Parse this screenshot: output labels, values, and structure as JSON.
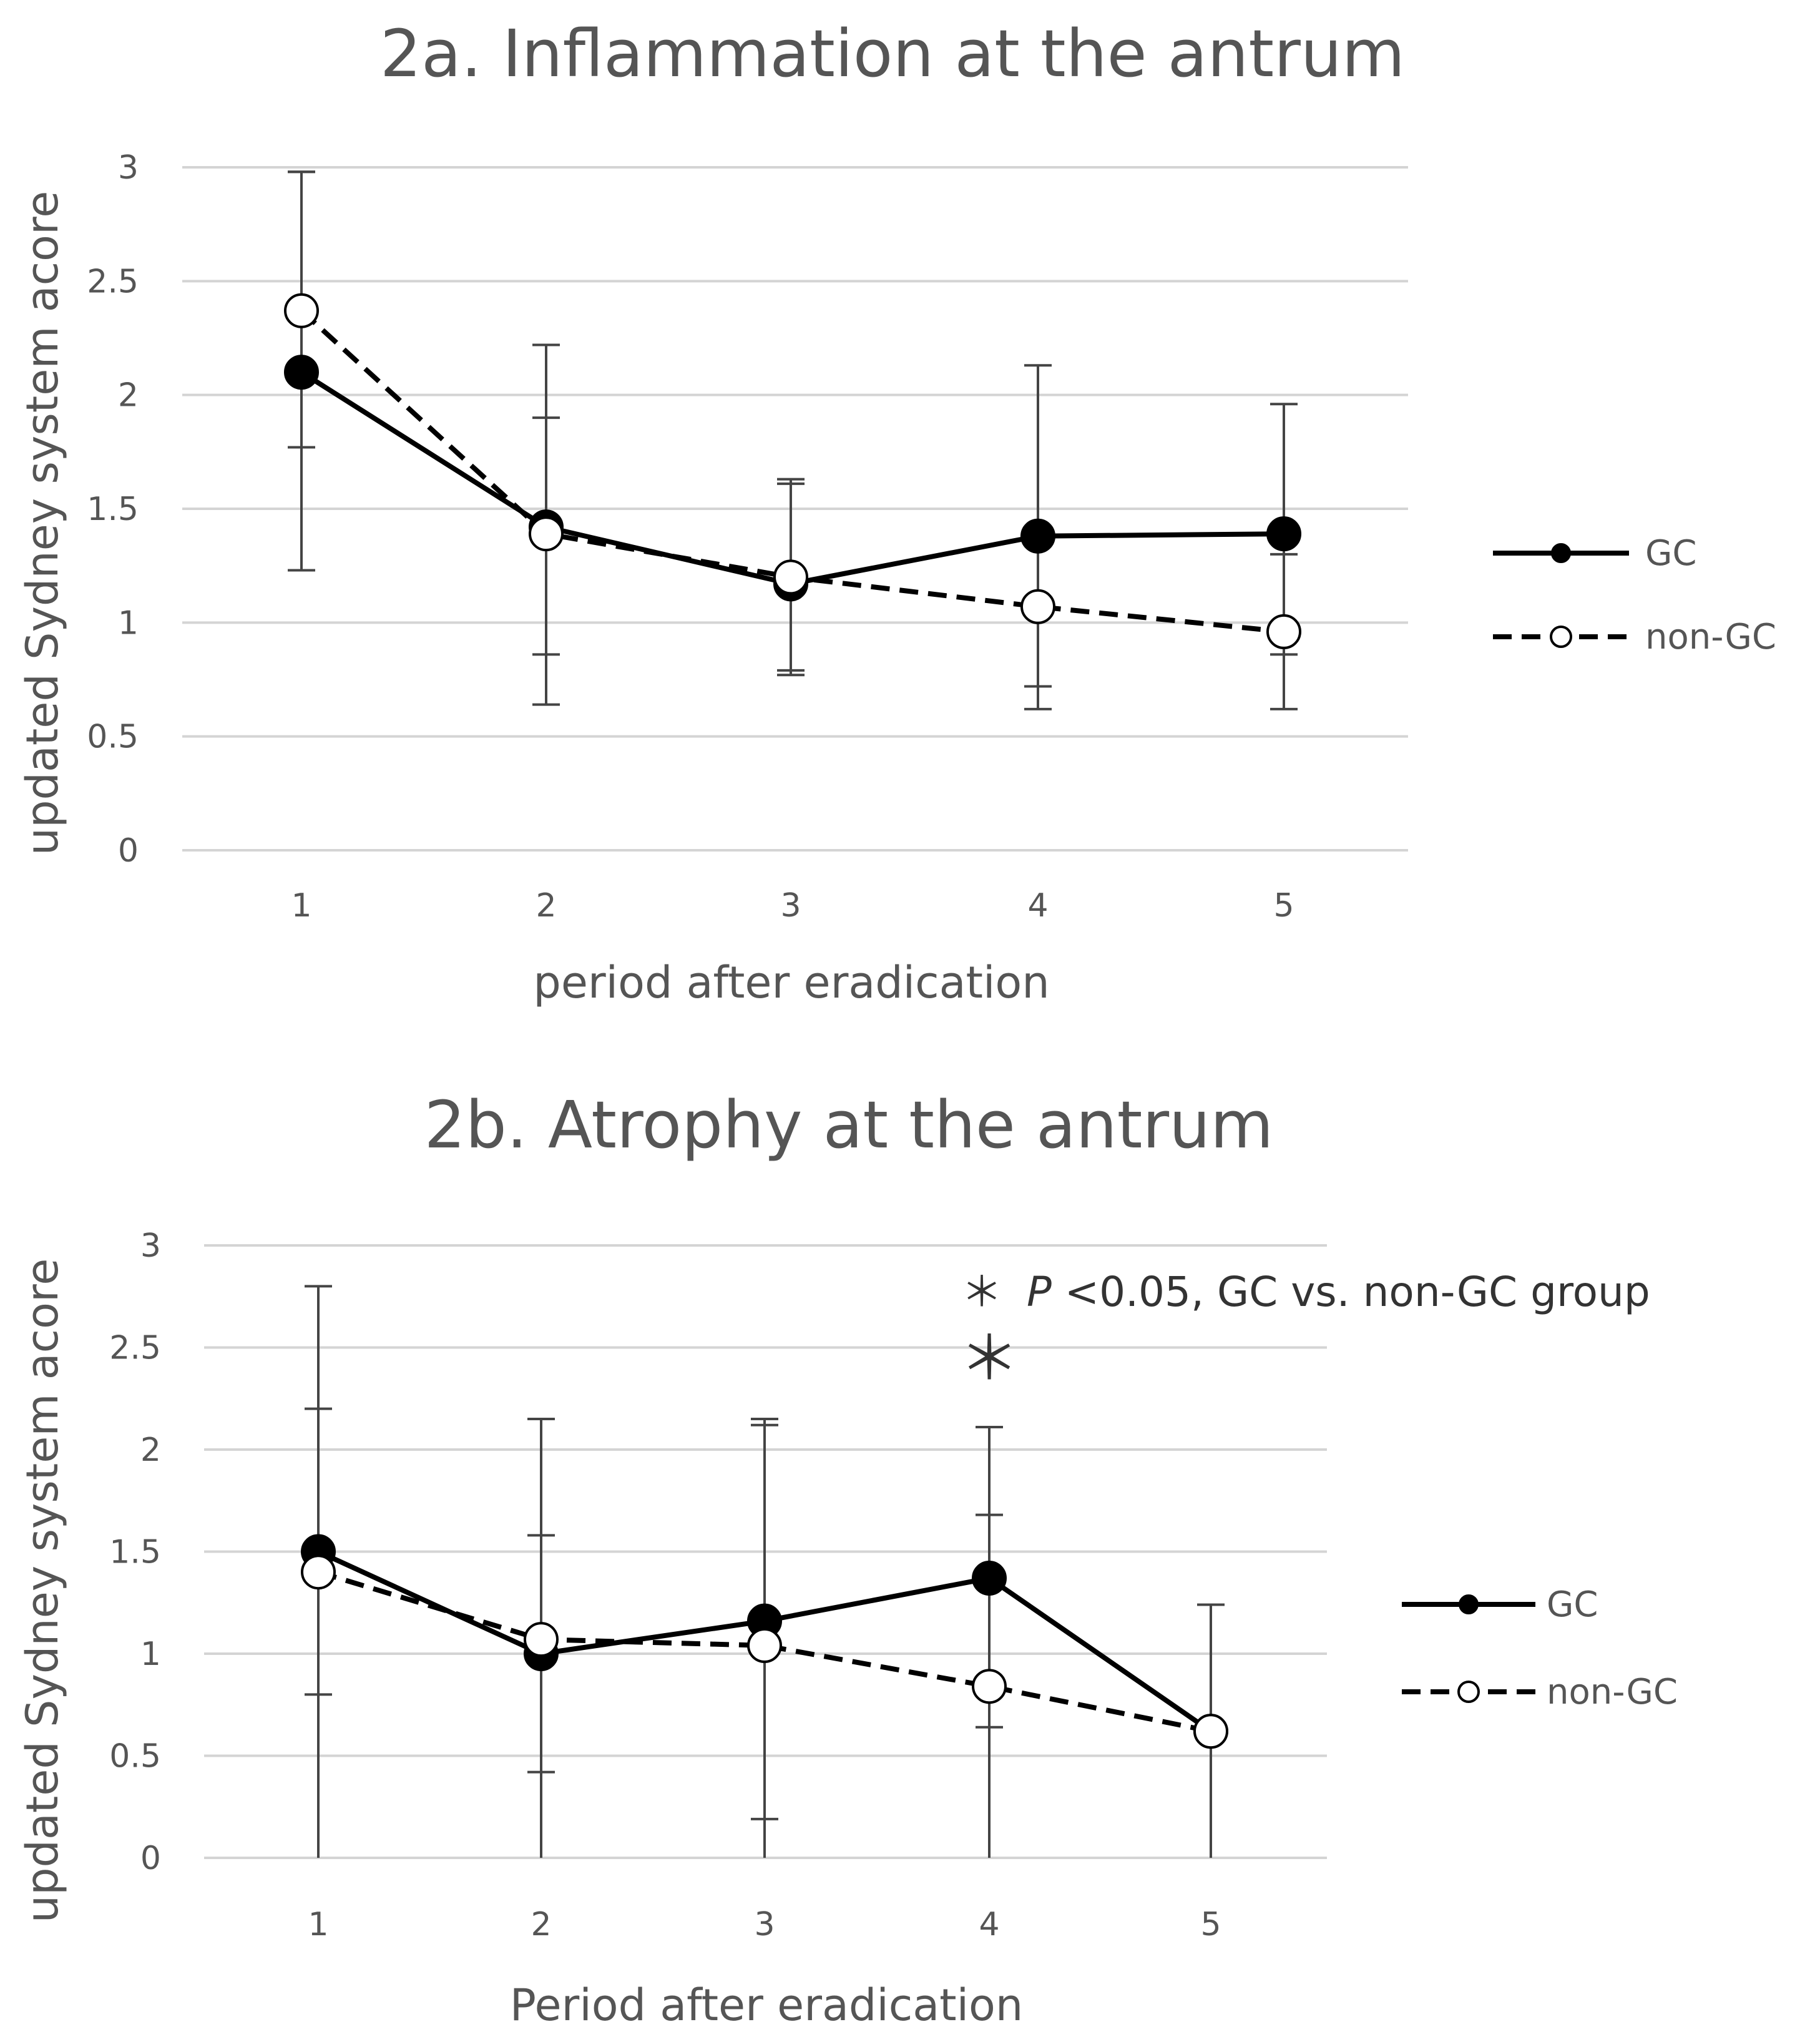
{
  "chart_data": [
    {
      "type": "line",
      "title": "2a. Inflammation at the antrum",
      "xlabel": "period after eradication",
      "ylabel": "updated Sydney system acore",
      "ylim": [
        0,
        3
      ],
      "yticks": [
        0,
        0.5,
        1,
        1.5,
        2,
        2.5,
        3
      ],
      "ytick_labels": [
        "0",
        "0.5",
        "1",
        "1.5",
        "2",
        "2.5",
        "3"
      ],
      "categories": [
        "1",
        "2",
        "3",
        "4",
        "5"
      ],
      "grid": true,
      "legend_position": "right",
      "series": [
        {
          "name": "GC",
          "style": "solid",
          "marker": "filled-circle",
          "values": [
            2.1,
            1.42,
            1.17,
            1.38,
            1.39
          ],
          "error_low": [
            1.23,
            0.64,
            0.77,
            0.62,
            0.86
          ],
          "error_high": [
            2.98,
            2.22,
            1.63,
            2.13,
            1.96
          ]
        },
        {
          "name": "non-GC",
          "style": "dashed",
          "marker": "open-circle",
          "values": [
            2.37,
            1.39,
            1.2,
            1.07,
            0.96
          ],
          "error_low": [
            1.77,
            0.86,
            0.79,
            0.72,
            0.62
          ],
          "error_high": [
            2.98,
            1.9,
            1.61,
            1.42,
            1.3
          ]
        }
      ],
      "annotations": []
    },
    {
      "type": "line",
      "title": "2b. Atrophy at the antrum",
      "xlabel": "Period after eradication",
      "ylabel": "updated Sydney system acore",
      "ylim": [
        0,
        3
      ],
      "yticks": [
        0,
        0.5,
        1,
        1.5,
        2,
        2.5,
        3
      ],
      "ytick_labels": [
        "0",
        "0.5",
        "1",
        "1.5",
        "2",
        "2.5",
        "3"
      ],
      "categories": [
        "1",
        "2",
        "3",
        "4",
        "5"
      ],
      "grid": true,
      "legend_position": "right",
      "series": [
        {
          "name": "GC",
          "style": "solid",
          "marker": "filled-circle",
          "values": [
            1.5,
            1.0,
            1.16,
            1.37,
            0.62
          ],
          "error_low": [
            0.0,
            0.0,
            0.19,
            0.64,
            0.0
          ],
          "error_high": [
            2.8,
            2.15,
            2.15,
            2.11,
            1.24
          ]
        },
        {
          "name": "non-GC",
          "style": "dashed",
          "marker": "open-circle",
          "values": [
            1.4,
            1.07,
            1.04,
            0.84,
            0.62
          ],
          "error_low": [
            0.8,
            0.42,
            0.0,
            0.0,
            0.0
          ],
          "error_high": [
            2.2,
            1.58,
            2.12,
            1.68,
            1.24
          ]
        }
      ],
      "annotations": [
        {
          "text": "＊",
          "at_category": "4",
          "y": 2.45
        }
      ],
      "note": {
        "star": "＊",
        "italic": "P",
        "rest": "<0.05, GC vs. non-GC group"
      }
    }
  ]
}
